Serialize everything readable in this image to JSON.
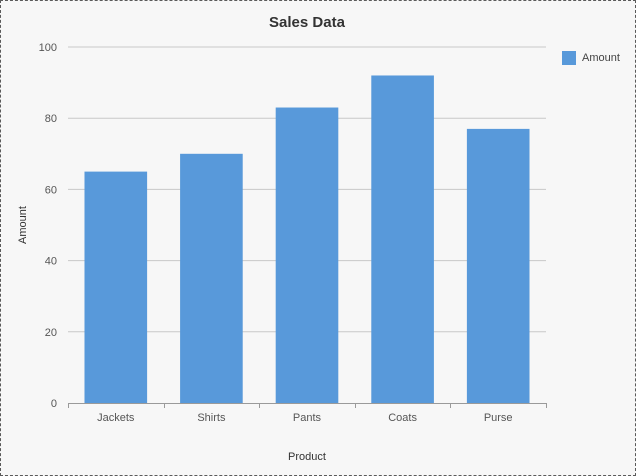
{
  "chart_data": {
    "type": "bar",
    "title": "Sales Data",
    "xlabel": "Product",
    "ylabel": "Amount",
    "categories": [
      "Jackets",
      "Shirts",
      "Pants",
      "Coats",
      "Purse"
    ],
    "series": [
      {
        "name": "Amount",
        "values": [
          65,
          70,
          83,
          92,
          77
        ],
        "color": "#5899da"
      }
    ],
    "ylim": [
      0,
      100
    ],
    "yticks": [
      "0",
      "20",
      "40",
      "60",
      "80",
      "100"
    ],
    "grid": true,
    "legend_position": "top-right"
  }
}
